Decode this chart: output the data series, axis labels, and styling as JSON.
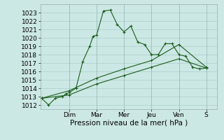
{
  "bg_color": "#cce8e4",
  "grid_color": "#aacccc",
  "line_color": "#1a5c1a",
  "ylim": [
    1011.5,
    1024.0
  ],
  "yticks": [
    1012,
    1013,
    1014,
    1015,
    1016,
    1017,
    1018,
    1019,
    1020,
    1021,
    1022,
    1023
  ],
  "xlabel": "Pression niveau de la mer( hPa )",
  "xlabel_fontsize": 7.5,
  "tick_fontsize": 6.5,
  "day_labels": [
    "Dim",
    "Mar",
    "Mer",
    "Jeu",
    "Ven",
    "S"
  ],
  "day_positions": [
    2,
    4,
    6,
    8,
    10,
    12
  ],
  "xlim": [
    -0.1,
    12.8
  ],
  "series1_x": [
    0,
    0.5,
    1.0,
    1.5,
    1.75,
    2.0,
    2.5,
    3.0,
    3.5,
    3.75,
    4.0,
    4.5,
    5.0,
    5.5,
    6.0,
    6.5,
    7.0,
    7.5,
    8.0,
    8.5,
    9.0,
    9.5,
    10.0,
    10.5,
    11.0,
    11.5,
    12.0
  ],
  "series1_y": [
    1012.8,
    1012.0,
    1012.8,
    1013.0,
    1013.3,
    1013.5,
    1014.0,
    1017.2,
    1019.0,
    1020.2,
    1020.3,
    1023.2,
    1023.3,
    1021.6,
    1020.7,
    1021.4,
    1019.5,
    1019.2,
    1018.0,
    1018.0,
    1019.3,
    1019.3,
    1018.0,
    1017.8,
    1016.5,
    1016.3,
    1016.4
  ],
  "series2_x": [
    0,
    2.0,
    4.0,
    6.0,
    8.0,
    10.0,
    12.0
  ],
  "series2_y": [
    1012.8,
    1013.7,
    1015.2,
    1016.3,
    1017.3,
    1019.2,
    1016.5
  ],
  "series3_x": [
    0,
    2.0,
    4.0,
    6.0,
    8.0,
    10.0,
    12.0
  ],
  "series3_y": [
    1012.8,
    1013.2,
    1014.5,
    1015.5,
    1016.5,
    1017.5,
    1016.4
  ]
}
